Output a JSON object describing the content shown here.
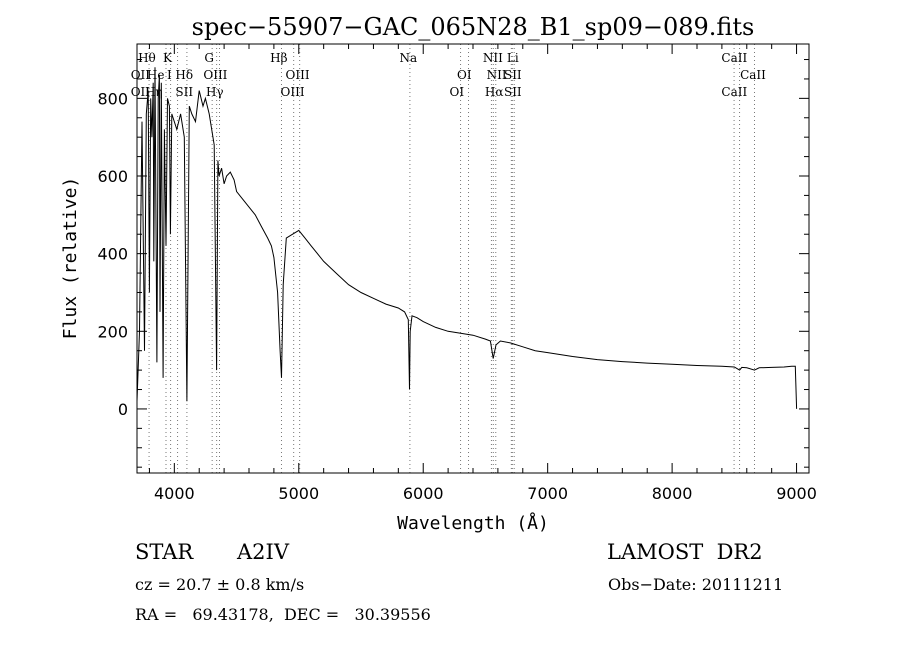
{
  "chart_data": {
    "type": "line",
    "title": "spec−55907−GAC_065N28_B1_sp09−089.fits",
    "xlabel": "Wavelength (Å)",
    "ylabel": "Flux (relative)",
    "xlim": [
      3700,
      9100
    ],
    "ylim": [
      -165,
      940
    ],
    "x_ticks": [
      4000,
      5000,
      6000,
      7000,
      8000,
      9000
    ],
    "y_ticks": [
      0,
      200,
      400,
      600,
      800
    ],
    "x_tick_labels": [
      "4000",
      "5000",
      "6000",
      "7000",
      "8000",
      "9000"
    ],
    "y_tick_labels": [
      "0",
      "200",
      "400",
      "600",
      "800"
    ],
    "grid": false,
    "series": [
      {
        "x": [
          3700,
          3720,
          3740,
          3760,
          3775,
          3790,
          3800,
          3810,
          3820,
          3830,
          3835,
          3845,
          3860,
          3870,
          3880,
          3885,
          3895,
          3910,
          3920,
          3933,
          3945,
          3960,
          3968,
          3980,
          4000,
          4020,
          4050,
          4080,
          4101,
          4120,
          4140,
          4170,
          4200,
          4230,
          4250,
          4280,
          4300,
          4320,
          4340,
          4350,
          4360,
          4380,
          4400,
          4420,
          4450,
          4480,
          4500,
          4550,
          4600,
          4650,
          4700,
          4750,
          4780,
          4800,
          4830,
          4850,
          4861,
          4875,
          4900,
          4950,
          5000,
          5050,
          5100,
          5150,
          5200,
          5300,
          5400,
          5500,
          5600,
          5700,
          5800,
          5850,
          5880,
          5890,
          5895,
          5910,
          5950,
          6000,
          6100,
          6200,
          6300,
          6400,
          6500,
          6540,
          6562,
          6585,
          6620,
          6700,
          6800,
          6900,
          7000,
          7200,
          7400,
          7600,
          7800,
          8000,
          8200,
          8400,
          8500,
          8542,
          8560,
          8600,
          8662,
          8700,
          8800,
          8900,
          8960,
          8990,
          9000
        ],
        "y": [
          20,
          200,
          740,
          150,
          760,
          820,
          300,
          800,
          700,
          840,
          380,
          880,
          120,
          800,
          860,
          250,
          840,
          80,
          720,
          420,
          800,
          780,
          450,
          760,
          740,
          720,
          760,
          700,
          20,
          780,
          760,
          740,
          820,
          780,
          800,
          760,
          720,
          680,
          100,
          640,
          600,
          620,
          580,
          600,
          610,
          590,
          560,
          540,
          520,
          500,
          470,
          440,
          420,
          390,
          300,
          150,
          80,
          320,
          440,
          450,
          460,
          440,
          420,
          400,
          380,
          350,
          320,
          300,
          285,
          270,
          260,
          250,
          230,
          50,
          200,
          240,
          235,
          225,
          210,
          200,
          195,
          190,
          180,
          175,
          130,
          165,
          175,
          170,
          160,
          150,
          145,
          135,
          127,
          122,
          118,
          115,
          112,
          110,
          108,
          100,
          107,
          106,
          100,
          106,
          107,
          108,
          110,
          110,
          0
        ]
      }
    ],
    "lines": {
      "top": [
        {
          "label": "Hθ",
          "x": 3797
        },
        {
          "label": "K",
          "x": 3933
        },
        {
          "label": "Hε",
          "x": 3970
        },
        {
          "label": "HeI",
          "x": 4026
        },
        {
          "label": "Hδ",
          "x": 4101
        },
        {
          "label": "G",
          "x": 4304
        },
        {
          "label": "OIII",
          "x": 4363
        },
        {
          "label": "Hγ",
          "x": 4340
        },
        {
          "label": "Hβ",
          "x": 4861
        },
        {
          "label": "OIII",
          "x": 4959
        },
        {
          "label": "OIII",
          "x": 5007
        },
        {
          "label": "Na",
          "x": 5893
        },
        {
          "label": "OI",
          "x": 6300
        },
        {
          "label": "OI",
          "x": 6364
        },
        {
          "label": "NII",
          "x": 6548
        },
        {
          "label": "NII",
          "x": 6583
        },
        {
          "label": "Hα",
          "x": 6563
        },
        {
          "label": "Li",
          "x": 6708
        },
        {
          "label": "SII",
          "x": 6716
        },
        {
          "label": "SII",
          "x": 6731
        },
        {
          "label": "CaII",
          "x": 8498
        },
        {
          "label": "CaII",
          "x": 8542
        },
        {
          "label": "CaII",
          "x": 8662
        }
      ],
      "labels": [
        {
          "text": "Hθ",
          "row": 1,
          "x": 3780
        },
        {
          "text": "K",
          "row": 1,
          "x": 3945
        },
        {
          "text": "Hδ",
          "row": 2,
          "x": 4080
        },
        {
          "text": "G",
          "row": 1,
          "x": 4280
        },
        {
          "text": "OIII",
          "row": 2,
          "x": 4330
        },
        {
          "text": "Hγ",
          "row": 3,
          "x": 4325
        },
        {
          "text": "Hβ",
          "row": 1,
          "x": 4840
        },
        {
          "text": "OIII",
          "row": 2,
          "x": 4990
        },
        {
          "text": "OIII",
          "row": 3,
          "x": 4950
        },
        {
          "text": "Na",
          "row": 1,
          "x": 5880
        },
        {
          "text": "OI",
          "row": 2,
          "x": 6330
        },
        {
          "text": "OI",
          "row": 3,
          "x": 6270
        },
        {
          "text": "NII",
          "row": 1,
          "x": 6560
        },
        {
          "text": "Li",
          "row": 1,
          "x": 6720
        },
        {
          "text": "NII",
          "row": 2,
          "x": 6590
        },
        {
          "text": "SII",
          "row": 2,
          "x": 6720
        },
        {
          "text": "Hα",
          "row": 3,
          "x": 6570
        },
        {
          "text": "SII",
          "row": 3,
          "x": 6720
        },
        {
          "text": "CaII",
          "row": 1,
          "x": 8500
        },
        {
          "text": "CaII",
          "row": 2,
          "x": 8650
        },
        {
          "text": "CaII",
          "row": 3,
          "x": 8500
        }
      ],
      "left_labels": [
        {
          "text": "OII",
          "row": 2,
          "x": 3727
        },
        {
          "text": "He",
          "row": 2,
          "x": 3850
        },
        {
          "text": "OII",
          "row": 3,
          "x": 3727
        },
        {
          "text": "Hη",
          "row": 3,
          "x": 3835
        },
        {
          "text": "SII",
          "row": 3,
          "x": 4080
        },
        {
          "text": "I",
          "row": 2,
          "x": 3960
        }
      ]
    }
  },
  "info": {
    "class_label": "STAR",
    "subclass": "A2IV",
    "cz": "cz = 20.7 ± 0.8 km/s",
    "radec": "RA =   69.43178,  DEC =   30.39556",
    "survey": "LAMOST  DR2",
    "obsdate": "Obs−Date: 20111211"
  }
}
